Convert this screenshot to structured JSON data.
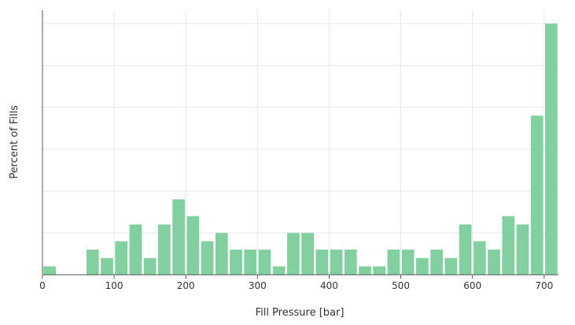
{
  "chart_data": {
    "type": "bar",
    "xlabel": "Fill Pressure [bar]",
    "ylabel": "Percent of Fills",
    "xlim": [
      0,
      720
    ],
    "ylim": [
      0,
      30
    ],
    "grid": true,
    "bin_width": 20,
    "color": "#82d0a0",
    "x_ticks": [
      0,
      100,
      200,
      300,
      400,
      500,
      600,
      700
    ],
    "y_gridlines": [
      5,
      10,
      15,
      20,
      25,
      30
    ],
    "bins": [
      {
        "x": 10,
        "value": 1
      },
      {
        "x": 30,
        "value": 0
      },
      {
        "x": 50,
        "value": 0
      },
      {
        "x": 70,
        "value": 3
      },
      {
        "x": 90,
        "value": 2
      },
      {
        "x": 110,
        "value": 4
      },
      {
        "x": 130,
        "value": 6
      },
      {
        "x": 150,
        "value": 2
      },
      {
        "x": 170,
        "value": 6
      },
      {
        "x": 190,
        "value": 9
      },
      {
        "x": 210,
        "value": 7
      },
      {
        "x": 230,
        "value": 4
      },
      {
        "x": 250,
        "value": 5
      },
      {
        "x": 270,
        "value": 3
      },
      {
        "x": 290,
        "value": 3
      },
      {
        "x": 310,
        "value": 3
      },
      {
        "x": 330,
        "value": 1
      },
      {
        "x": 350,
        "value": 5
      },
      {
        "x": 370,
        "value": 5
      },
      {
        "x": 390,
        "value": 3
      },
      {
        "x": 410,
        "value": 3
      },
      {
        "x": 430,
        "value": 3
      },
      {
        "x": 450,
        "value": 1
      },
      {
        "x": 470,
        "value": 1
      },
      {
        "x": 490,
        "value": 3
      },
      {
        "x": 510,
        "value": 3
      },
      {
        "x": 530,
        "value": 2
      },
      {
        "x": 550,
        "value": 3
      },
      {
        "x": 570,
        "value": 2
      },
      {
        "x": 590,
        "value": 6
      },
      {
        "x": 610,
        "value": 4
      },
      {
        "x": 630,
        "value": 3
      },
      {
        "x": 650,
        "value": 7
      },
      {
        "x": 670,
        "value": 6
      },
      {
        "x": 690,
        "value": 19
      },
      {
        "x": 710,
        "value": 30
      }
    ]
  }
}
